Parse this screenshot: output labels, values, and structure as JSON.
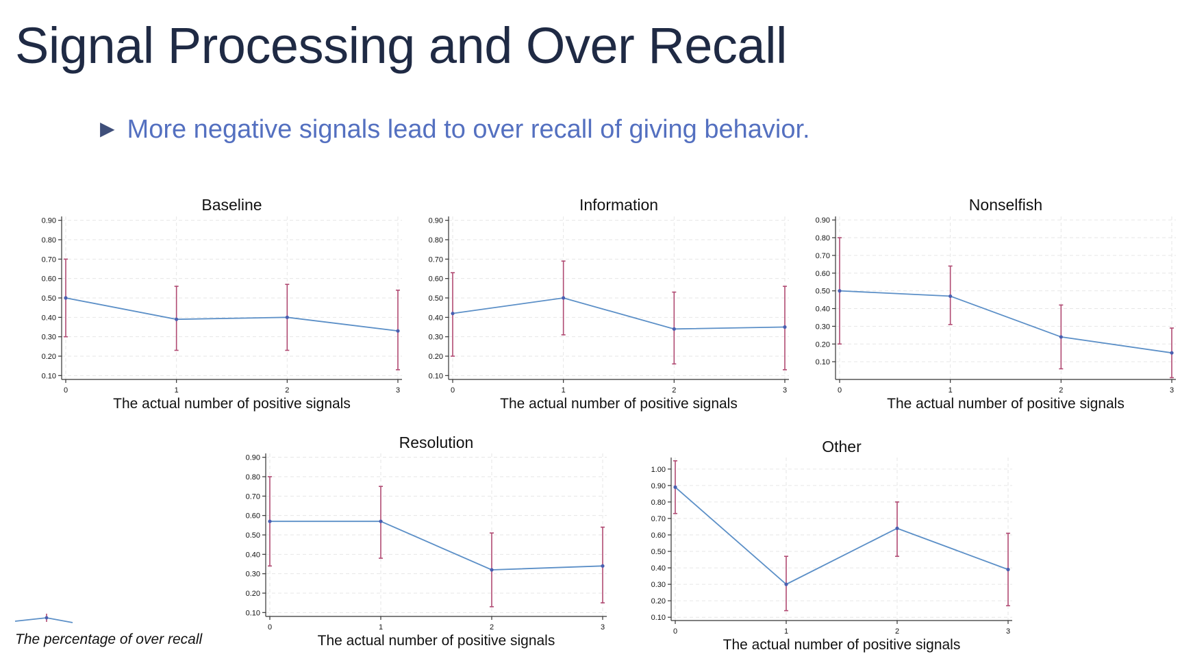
{
  "title": "Signal Processing and Over Recall",
  "bullet": "More negative signals lead to over recall of giving behavior.",
  "legend_label": "The percentage of over recall",
  "colors": {
    "title": "#1f2a44",
    "bullet": "#5470c0",
    "line": "#5b8fc7",
    "ci": "#b04a72",
    "marker": "#4a5fb0"
  },
  "chart_data": [
    {
      "type": "line",
      "title": "Baseline",
      "xlabel": "The actual number of positive signals",
      "ylabel": "",
      "x": [
        0,
        1,
        2,
        3
      ],
      "y": [
        0.5,
        0.39,
        0.4,
        0.33
      ],
      "ci_low": [
        0.3,
        0.23,
        0.23,
        0.13
      ],
      "ci_high": [
        0.7,
        0.56,
        0.57,
        0.54
      ],
      "xticks": [
        "0",
        "1",
        "2",
        "3"
      ],
      "yticks": [
        "0.10",
        "0.20",
        "0.30",
        "0.40",
        "0.50",
        "0.60",
        "0.70",
        "0.80",
        "0.90"
      ],
      "ylim": [
        0.08,
        0.92
      ],
      "grid": true
    },
    {
      "type": "line",
      "title": "Information",
      "xlabel": "The actual number of positive signals",
      "ylabel": "",
      "x": [
        0,
        1,
        2,
        3
      ],
      "y": [
        0.42,
        0.5,
        0.34,
        0.35
      ],
      "ci_low": [
        0.2,
        0.31,
        0.16,
        0.13
      ],
      "ci_high": [
        0.63,
        0.69,
        0.53,
        0.56
      ],
      "xticks": [
        "0",
        "1",
        "2",
        "3"
      ],
      "yticks": [
        "0.10",
        "0.20",
        "0.30",
        "0.40",
        "0.50",
        "0.60",
        "0.70",
        "0.80",
        "0.90"
      ],
      "ylim": [
        0.08,
        0.92
      ],
      "grid": true
    },
    {
      "type": "line",
      "title": "Nonselfish",
      "xlabel": "The actual number of positive signals",
      "ylabel": "",
      "x": [
        0,
        1,
        2,
        3
      ],
      "y": [
        0.5,
        0.47,
        0.24,
        0.15
      ],
      "ci_low": [
        0.2,
        0.31,
        0.06,
        0.01
      ],
      "ci_high": [
        0.8,
        0.64,
        0.42,
        0.29
      ],
      "xticks": [
        "0",
        "1",
        "2",
        "3"
      ],
      "yticks": [
        "0.10",
        "0.20",
        "0.30",
        "0.40",
        "0.50",
        "0.60",
        "0.70",
        "0.80",
        "0.90"
      ],
      "ylim": [
        0.0,
        0.92
      ],
      "grid": true
    },
    {
      "type": "line",
      "title": "Resolution",
      "xlabel": "The actual number of positive signals",
      "ylabel": "",
      "x": [
        0,
        1,
        2,
        3
      ],
      "y": [
        0.57,
        0.57,
        0.32,
        0.34
      ],
      "ci_low": [
        0.34,
        0.38,
        0.13,
        0.15
      ],
      "ci_high": [
        0.8,
        0.75,
        0.51,
        0.54
      ],
      "xticks": [
        "0",
        "1",
        "2",
        "3"
      ],
      "yticks": [
        "0.10",
        "0.20",
        "0.30",
        "0.40",
        "0.50",
        "0.60",
        "0.70",
        "0.80",
        "0.90"
      ],
      "ylim": [
        0.08,
        0.92
      ],
      "grid": true
    },
    {
      "type": "line",
      "title": "Other",
      "xlabel": "The actual number of positive signals",
      "ylabel": "",
      "x": [
        0,
        1,
        2,
        3
      ],
      "y": [
        0.89,
        0.3,
        0.64,
        0.39
      ],
      "ci_low": [
        0.73,
        0.14,
        0.47,
        0.17
      ],
      "ci_high": [
        1.05,
        0.47,
        0.8,
        0.61
      ],
      "xticks": [
        "0",
        "1",
        "2",
        "3"
      ],
      "yticks": [
        "0.10",
        "0.20",
        "0.30",
        "0.40",
        "0.50",
        "0.60",
        "0.70",
        "0.80",
        "0.90",
        "1.00"
      ],
      "ylim": [
        0.08,
        1.07
      ],
      "grid": true
    }
  ]
}
